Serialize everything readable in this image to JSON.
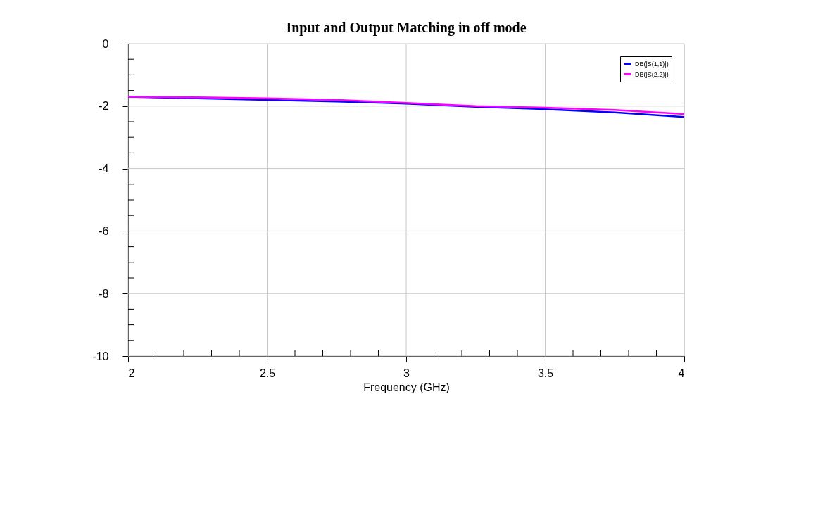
{
  "chart_data": {
    "type": "line",
    "title": "Input and Output Matching in off mode",
    "xlabel": "Frequency (GHz)",
    "x": [
      2,
      2.25,
      2.5,
      2.75,
      3,
      3.25,
      3.5,
      3.75,
      4
    ],
    "series": [
      {
        "name": "DB(|S(1,1)|)",
        "color": "#0000ff",
        "values": [
          -1.7,
          -1.75,
          -1.8,
          -1.85,
          -1.92,
          -2.02,
          -2.1,
          -2.2,
          -2.35
        ]
      },
      {
        "name": "DB(|S(2,2)|)",
        "color": "#ff00ff",
        "values": [
          -1.7,
          -1.72,
          -1.75,
          -1.8,
          -1.9,
          -2.0,
          -2.05,
          -2.12,
          -2.25
        ]
      }
    ],
    "xlim": [
      2,
      4
    ],
    "ylim": [
      -10,
      0
    ],
    "xticks": [
      2,
      {
        "value": 2.1,
        "label": null
      },
      {
        "value": 2.2,
        "label": null
      },
      {
        "value": 2.3,
        "label": null
      },
      {
        "value": 2.4,
        "label": null
      },
      2.5,
      {
        "value": 2.6,
        "label": null
      },
      {
        "value": 2.7,
        "label": null
      },
      {
        "value": 2.8,
        "label": null
      },
      {
        "value": 2.9,
        "label": null
      },
      3,
      {
        "value": 3.1,
        "label": null
      },
      {
        "value": 3.2,
        "label": null
      },
      {
        "value": 3.3,
        "label": null
      },
      {
        "value": 3.4,
        "label": null
      },
      3.5,
      {
        "value": 3.6,
        "label": null
      },
      {
        "value": 3.7,
        "label": null
      },
      {
        "value": 3.8,
        "label": null
      },
      {
        "value": 3.9,
        "label": null
      },
      4
    ],
    "yticks": [
      -10,
      {
        "value": -9.5,
        "label": null
      },
      {
        "value": -9,
        "label": null
      },
      {
        "value": -8.5,
        "label": null
      },
      -8,
      {
        "value": -7.5,
        "label": null
      },
      {
        "value": -7,
        "label": null
      },
      {
        "value": -6.5,
        "label": null
      },
      -6,
      {
        "value": -5.5,
        "label": null
      },
      {
        "value": -5,
        "label": null
      },
      {
        "value": -4.5,
        "label": null
      },
      -4,
      {
        "value": -3.5,
        "label": null
      },
      {
        "value": -3,
        "label": null
      },
      {
        "value": -2.5,
        "label": null
      },
      -2,
      {
        "value": -1.5,
        "label": null
      },
      {
        "value": -1,
        "label": null
      },
      {
        "value": -0.5,
        "label": null
      },
      0
    ],
    "grid": true,
    "legend": "top right",
    "marker": "none",
    "line_style": "solid"
  }
}
